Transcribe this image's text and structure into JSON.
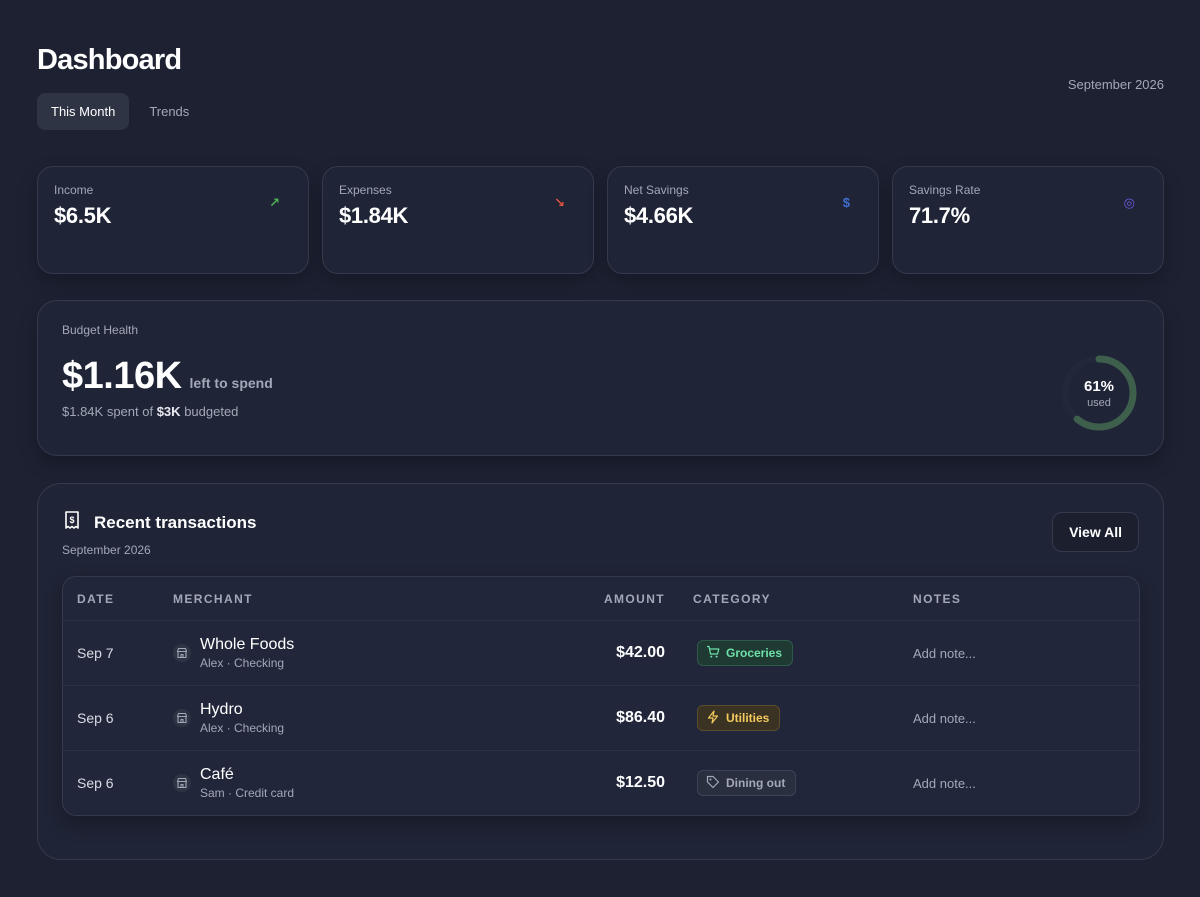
{
  "header": {
    "title": "Dashboard",
    "period": "September 2026",
    "tabs": [
      {
        "label": "This Month",
        "active": true
      },
      {
        "label": "Trends",
        "active": false
      }
    ]
  },
  "stats": [
    {
      "label": "Income",
      "value": "$6.5K",
      "icon": "arrow-up-right-icon",
      "icon_glyph": "↗",
      "color": "#4caf50"
    },
    {
      "label": "Expenses",
      "value": "$1.84K",
      "icon": "arrow-down-right-icon",
      "icon_glyph": "↘",
      "color": "#e0533f"
    },
    {
      "label": "Net Savings",
      "value": "$4.66K",
      "icon": "dollar-icon",
      "icon_glyph": "$",
      "color": "#3f6fd1"
    },
    {
      "label": "Savings Rate",
      "value": "71.7%",
      "icon": "target-icon",
      "icon_glyph": "◎",
      "color": "#6b5be6"
    }
  ],
  "budget": {
    "label": "Budget Health",
    "remaining": "$1.16K",
    "remaining_suffix": "left to spend",
    "spent_prefix": "$1.84K spent of",
    "budgeted": "$3K",
    "spent_suffix": "budgeted",
    "percent_label": "61%",
    "used_label": "used",
    "used_fraction": 0.61,
    "ring_color": "#3d5f4c"
  },
  "transactions": {
    "title": "Recent transactions",
    "subtitle": "September 2026",
    "view_all_label": "View All",
    "columns": {
      "date": "DATE",
      "merchant": "MERCHANT",
      "amount": "AMOUNT",
      "category": "CATEGORY",
      "notes": "NOTES"
    },
    "rows": [
      {
        "date": "Sep 7",
        "merchant": "Whole Foods",
        "account": "Alex · Checking",
        "amount": "$42.00",
        "category": "Groceries",
        "category_icon": "cart-icon",
        "notes_placeholder": "Add note..."
      },
      {
        "date": "Sep 6",
        "merchant": "Hydro",
        "account": "Alex · Checking",
        "amount": "$86.40",
        "category": "Utilities",
        "category_icon": "bolt-icon",
        "notes_placeholder": "Add note..."
      },
      {
        "date": "Sep 6",
        "merchant": "Café",
        "account": "Sam · Credit card",
        "amount": "$12.50",
        "category": "Dining out",
        "category_icon": "tag-icon",
        "notes_placeholder": "Add note..."
      }
    ]
  }
}
